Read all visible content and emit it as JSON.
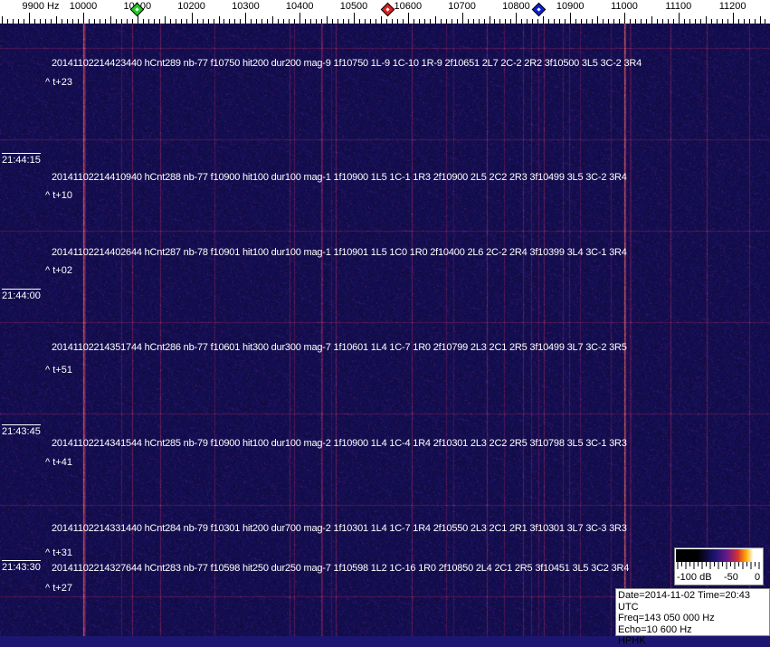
{
  "ruler": {
    "labels": [
      "9900 Hz",
      "10000",
      "10100",
      "10200",
      "10300",
      "10400",
      "10500",
      "10600",
      "10700",
      "10800",
      "10900",
      "11000",
      "11100",
      "11200"
    ],
    "label_freqs": [
      9900,
      10000,
      10100,
      10200,
      10300,
      10400,
      10500,
      10600,
      10700,
      10800,
      10900,
      11000,
      11100,
      11200
    ],
    "markers": [
      {
        "name": "green-marker",
        "freq": 10100,
        "color": "#22cc22"
      },
      {
        "name": "red-marker",
        "freq": 10563,
        "color": "#dd2020"
      },
      {
        "name": "blue-marker",
        "freq": 10843,
        "color": "#1020cc"
      }
    ]
  },
  "time_labels": [
    "21:44:15",
    "21:44:00",
    "21:43:45",
    "21:43:30"
  ],
  "detections": [
    {
      "text": "20141102214423440 hCnt289 nb-77 f10750 hit200 dur200 mag-9 1f10750 1L-9 1C-10 1R-9 2f10651 2L7 2C-2 2R2 3f10500 3L5 3C-2 3R4",
      "delta": "^ t+23"
    },
    {
      "text": "20141102214410940 hCnt288 nb-77 f10900 hit100 dur100 mag-1 1f10900 1L5 1C-1 1R3 2f10900 2L5 2C2 2R3 3f10499 3L5 3C-2 3R4",
      "delta": "^ t+10"
    },
    {
      "text": "20141102214402644 hCnt287 nb-78 f10901 hit100 dur100 mag-1 1f10901 1L5 1C0 1R0 2f10400 2L6 2C-2 2R4 3f10399 3L4 3C-1 3R4",
      "delta": "^ t+02"
    },
    {
      "text": "20141102214351744 hCnt286 nb-77 f10601 hit300 dur300 mag-7 1f10601 1L4 1C-7 1R0 2f10799 2L3 2C1 2R5 3f10499 3L7 3C-2 3R5",
      "delta": "^ t+51"
    },
    {
      "text": "20141102214341544 hCnt285 nb-79 f10900 hit100 dur100 mag-2 1f10900 1L4 1C-4 1R4 2f10301 2L3 2C2 2R5 3f10798 3L5 3C-1 3R3",
      "delta": "^ t+41"
    },
    {
      "text": "20141102214331440 hCnt284 nb-79 f10301 hit200 dur700 mag-2 1f10301 1L4 1C-7 1R4 2f10550 2L3 2C1 2R1 3f10301 3L7 3C-3 3R3",
      "delta": "^ t+31"
    },
    {
      "text": "20141102214327644 hCnt283 nb-77 f10598 hit250 dur250 mag-7 1f10598 1L2 1C-16 1R0 2f10850 2L4 2C1 2R5 3f10451 3L5 3C2 3R4",
      "delta": "^ t+27"
    }
  ],
  "colorbar": {
    "min_label": "-100 dB",
    "mid_label": "-50",
    "max_label": "0"
  },
  "info": {
    "line1": "Date=2014-11-02 Time=20:43 UTC",
    "line2": "Freq=143 050 000 Hz",
    "line3": "Echo=10 600 Hz",
    "line4": "HPHK"
  },
  "colors": {
    "background": "#1c1670",
    "carrier": "#e07050",
    "accent_line": "#8a2a8a"
  }
}
